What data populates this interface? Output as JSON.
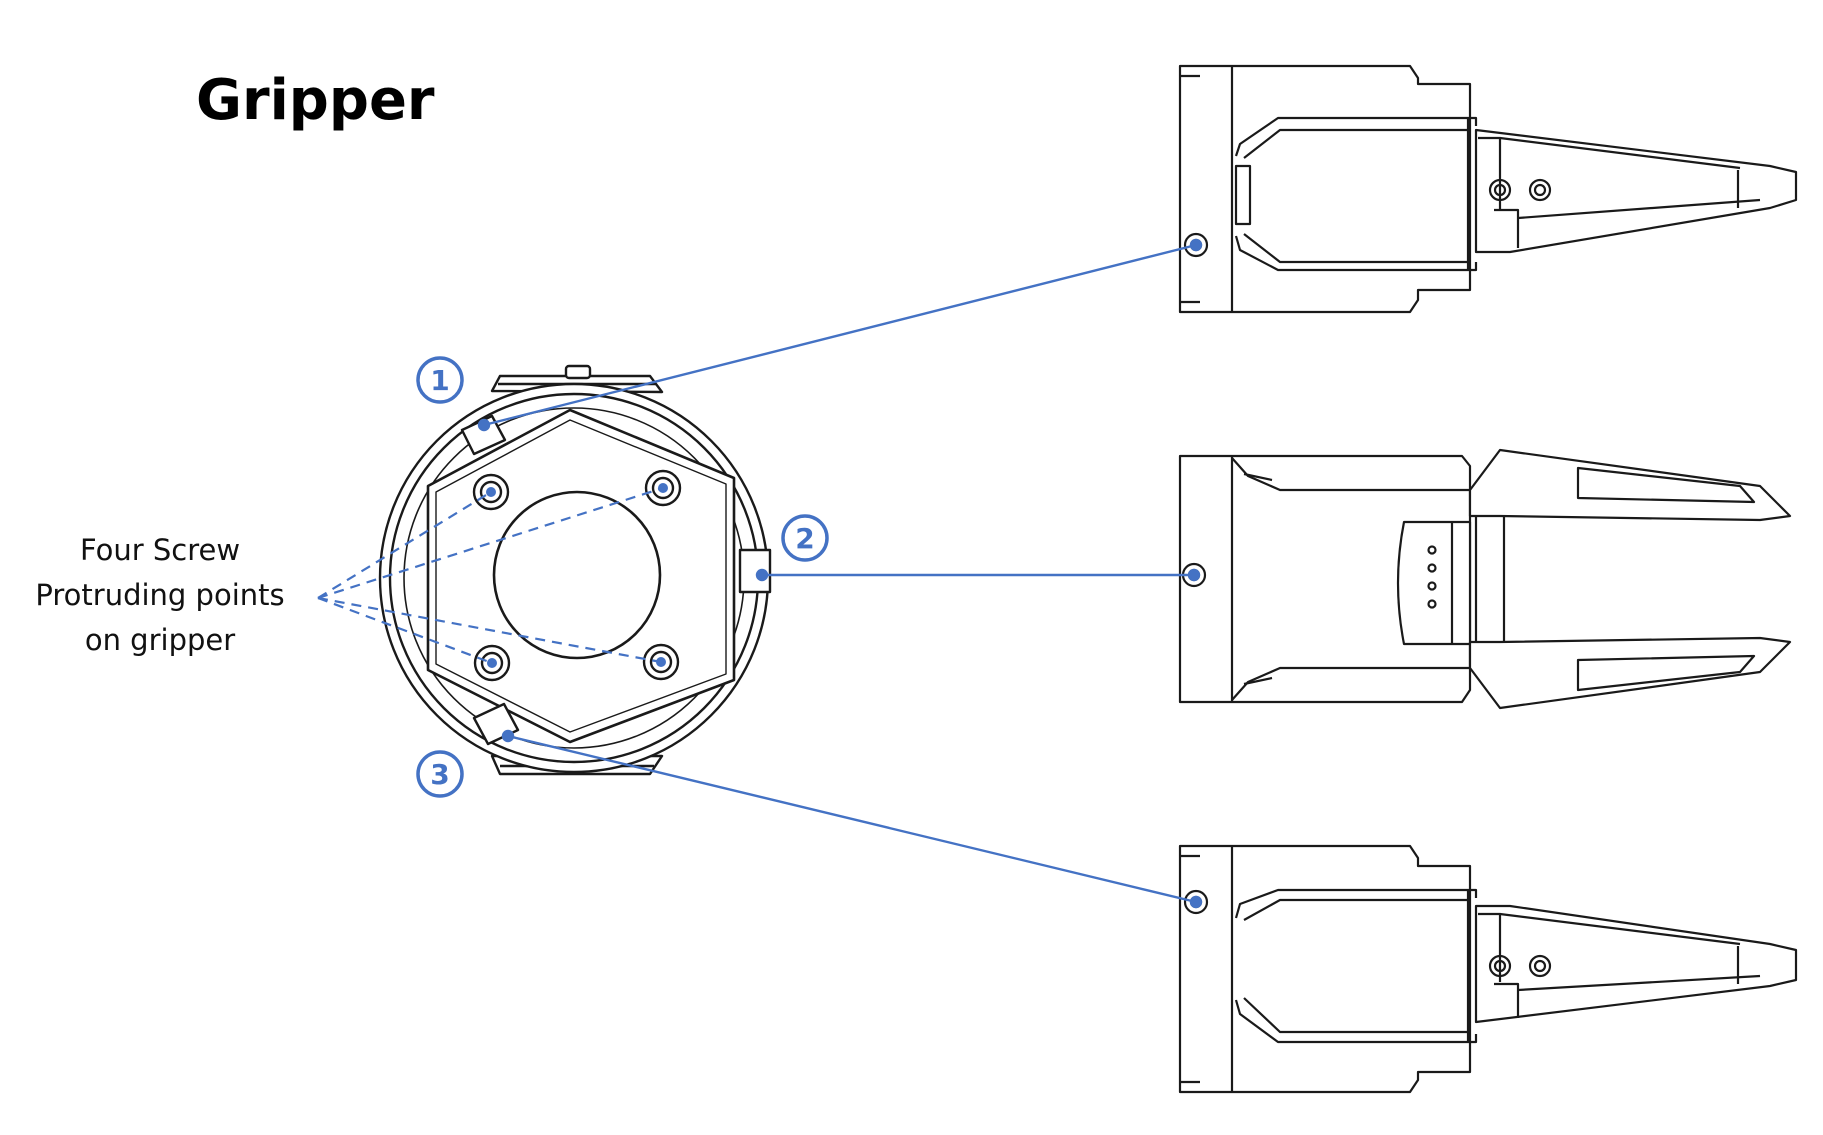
{
  "title": "Gripper",
  "annotation": {
    "lines": [
      "Four Screw",
      "Protruding points",
      "on gripper"
    ]
  },
  "callouts": [
    "1",
    "2",
    "3"
  ],
  "colors": {
    "accent": "#4472C4",
    "drawing": "#1a1a1a"
  }
}
